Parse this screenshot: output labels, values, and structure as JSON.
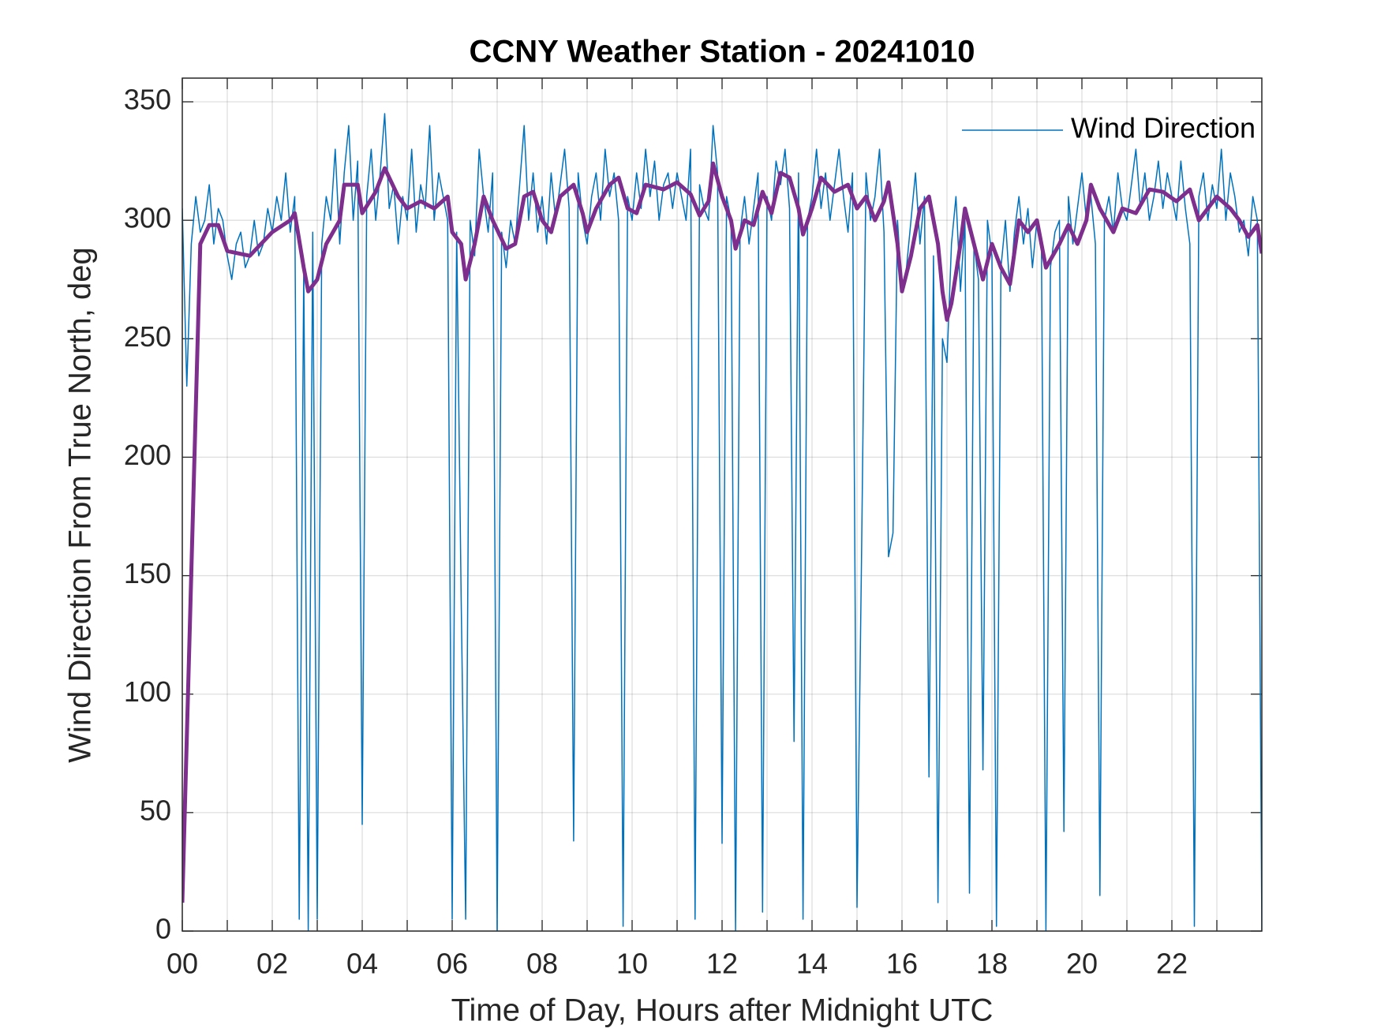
{
  "chart_data": {
    "type": "line",
    "title": "CCNY Weather Station - 20241010",
    "xlabel": "Time of Day, Hours after Midnight UTC",
    "ylabel": "Wind Direction From True North, deg",
    "xlim": [
      0,
      24
    ],
    "ylim": [
      0,
      360
    ],
    "xticks": [
      {
        "value": 0,
        "label": "00"
      },
      {
        "value": 2,
        "label": "02"
      },
      {
        "value": 4,
        "label": "04"
      },
      {
        "value": 6,
        "label": "06"
      },
      {
        "value": 8,
        "label": "08"
      },
      {
        "value": 10,
        "label": "10"
      },
      {
        "value": 12,
        "label": "12"
      },
      {
        "value": 14,
        "label": "14"
      },
      {
        "value": 16,
        "label": "16"
      },
      {
        "value": 18,
        "label": "18"
      },
      {
        "value": 20,
        "label": "20"
      },
      {
        "value": 22,
        "label": "22"
      }
    ],
    "xminor_ticks": [
      1,
      3,
      5,
      7,
      9,
      11,
      13,
      15,
      17,
      19,
      21,
      23
    ],
    "yticks": [
      0,
      50,
      100,
      150,
      200,
      250,
      300,
      350
    ],
    "grid": true,
    "legend": "northeast",
    "series": [
      {
        "name": "Wind Direction",
        "color": "#0072bd",
        "width": 1.5,
        "x": [
          0,
          0.1,
          0.2,
          0.3,
          0.4,
          0.5,
          0.6,
          0.7,
          0.8,
          0.9,
          1,
          1.1,
          1.2,
          1.3,
          1.4,
          1.5,
          1.6,
          1.7,
          1.8,
          1.9,
          2,
          2.1,
          2.2,
          2.3,
          2.4,
          2.5,
          2.6,
          2.7,
          2.8,
          2.9,
          3,
          3.1,
          3.2,
          3.3,
          3.4,
          3.5,
          3.6,
          3.7,
          3.8,
          3.9,
          4,
          4.1,
          4.2,
          4.3,
          4.4,
          4.5,
          4.6,
          4.7,
          4.8,
          4.9,
          5,
          5.1,
          5.2,
          5.3,
          5.4,
          5.5,
          5.6,
          5.7,
          5.8,
          5.9,
          6,
          6.1,
          6.2,
          6.3,
          6.4,
          6.5,
          6.6,
          6.7,
          6.8,
          6.9,
          7,
          7.1,
          7.2,
          7.3,
          7.4,
          7.5,
          7.6,
          7.7,
          7.8,
          7.9,
          8,
          8.1,
          8.2,
          8.3,
          8.4,
          8.5,
          8.6,
          8.7,
          8.8,
          8.9,
          9,
          9.1,
          9.2,
          9.3,
          9.4,
          9.5,
          9.6,
          9.7,
          9.8,
          9.9,
          10,
          10.1,
          10.2,
          10.3,
          10.4,
          10.5,
          10.6,
          10.7,
          10.8,
          10.9,
          11,
          11.1,
          11.2,
          11.3,
          11.4,
          11.5,
          11.6,
          11.7,
          11.8,
          11.9,
          12,
          12.1,
          12.2,
          12.3,
          12.4,
          12.5,
          12.6,
          12.7,
          12.8,
          12.9,
          13,
          13.1,
          13.2,
          13.3,
          13.4,
          13.5,
          13.6,
          13.7,
          13.8,
          13.9,
          14,
          14.1,
          14.2,
          14.3,
          14.4,
          14.5,
          14.6,
          14.7,
          14.8,
          14.9,
          15,
          15.1,
          15.2,
          15.3,
          15.4,
          15.5,
          15.6,
          15.7,
          15.8,
          15.9,
          16,
          16.1,
          16.2,
          16.3,
          16.4,
          16.5,
          16.6,
          16.7,
          16.8,
          16.9,
          17,
          17.1,
          17.2,
          17.3,
          17.4,
          17.5,
          17.6,
          17.7,
          17.8,
          17.9,
          18,
          18.1,
          18.2,
          18.3,
          18.4,
          18.5,
          18.6,
          18.7,
          18.8,
          18.9,
          19,
          19.1,
          19.2,
          19.3,
          19.4,
          19.5,
          19.6,
          19.7,
          19.8,
          19.9,
          20,
          20.1,
          20.2,
          20.3,
          20.4,
          20.5,
          20.6,
          20.7,
          20.8,
          20.9,
          21,
          21.1,
          21.2,
          21.3,
          21.4,
          21.5,
          21.6,
          21.7,
          21.8,
          21.9,
          22,
          22.1,
          22.2,
          22.3,
          22.4,
          22.5,
          22.6,
          22.7,
          22.8,
          22.9,
          23,
          23.1,
          23.2,
          23.3,
          23.4,
          23.5,
          23.6,
          23.7,
          23.8,
          23.9,
          24
        ],
        "values": [
          305,
          230,
          290,
          310,
          295,
          300,
          315,
          290,
          305,
          300,
          285,
          275,
          290,
          295,
          280,
          285,
          300,
          285,
          290,
          305,
          295,
          310,
          300,
          320,
          295,
          310,
          5,
          280,
          0,
          295,
          5,
          290,
          310,
          300,
          330,
          290,
          320,
          340,
          300,
          325,
          45,
          310,
          330,
          300,
          320,
          345,
          305,
          315,
          290,
          310,
          300,
          330,
          295,
          315,
          305,
          340,
          300,
          320,
          310,
          300,
          5,
          295,
          140,
          5,
          300,
          285,
          330,
          310,
          295,
          320,
          0,
          295,
          280,
          300,
          290,
          315,
          340,
          300,
          320,
          295,
          310,
          290,
          320,
          300,
          315,
          330,
          305,
          38,
          320,
          300,
          290,
          310,
          320,
          300,
          330,
          310,
          320,
          300,
          2,
          310,
          300,
          320,
          305,
          330,
          310,
          325,
          300,
          315,
          320,
          305,
          320,
          310,
          300,
          330,
          5,
          315,
          305,
          300,
          340,
          320,
          37,
          310,
          300,
          0,
          295,
          310,
          290,
          305,
          320,
          8,
          310,
          300,
          325,
          315,
          330,
          305,
          80,
          320,
          5,
          300,
          310,
          330,
          305,
          320,
          300,
          315,
          330,
          310,
          295,
          320,
          10,
          157,
          320,
          300,
          310,
          330,
          295,
          158,
          168,
          300,
          270,
          280,
          300,
          320,
          290,
          310,
          65,
          285,
          12,
          250,
          240,
          290,
          310,
          270,
          300,
          16,
          290,
          275,
          68,
          300,
          285,
          2,
          280,
          300,
          270,
          295,
          310,
          290,
          305,
          280,
          300,
          290,
          0,
          280,
          295,
          300,
          42,
          310,
          290,
          305,
          320,
          300,
          310,
          290,
          15,
          300,
          310,
          295,
          320,
          305,
          300,
          315,
          330,
          305,
          320,
          300,
          310,
          325,
          305,
          320,
          310,
          300,
          325,
          305,
          290,
          2,
          310,
          320,
          300,
          315,
          305,
          330,
          300,
          320,
          310,
          295,
          300,
          285,
          310,
          300,
          0
        ]
      },
      {
        "color": "#7e2f8e",
        "width": 5,
        "x": [
          0,
          0.4,
          0.6,
          0.8,
          1,
          1.5,
          2,
          2.4,
          2.5,
          2.7,
          2.8,
          3,
          3.2,
          3.5,
          3.6,
          3.9,
          4,
          4.3,
          4.5,
          4.8,
          5,
          5.3,
          5.6,
          5.9,
          6,
          6.2,
          6.3,
          6.5,
          6.7,
          6.9,
          7.2,
          7.4,
          7.6,
          7.8,
          8,
          8.2,
          8.4,
          8.7,
          8.9,
          9,
          9.2,
          9.5,
          9.7,
          9.9,
          10.1,
          10.3,
          10.7,
          11,
          11.3,
          11.5,
          11.7,
          11.8,
          12,
          12.2,
          12.3,
          12.5,
          12.7,
          12.9,
          13.1,
          13.3,
          13.5,
          13.7,
          13.8,
          14,
          14.2,
          14.5,
          14.8,
          15,
          15.2,
          15.4,
          15.6,
          15.7,
          15.9,
          16,
          16.2,
          16.4,
          16.6,
          16.8,
          16.9,
          17,
          17.1,
          17.3,
          17.4,
          17.6,
          17.8,
          18,
          18.2,
          18.4,
          18.6,
          18.8,
          19,
          19.2,
          19.5,
          19.7,
          19.9,
          20.1,
          20.2,
          20.4,
          20.7,
          20.9,
          21.2,
          21.5,
          21.8,
          22.1,
          22.4,
          22.6,
          22.8,
          23,
          23.3,
          23.5,
          23.7,
          23.9,
          24
        ],
        "values": [
          12,
          290,
          298,
          298,
          287,
          285,
          295,
          300,
          303,
          280,
          270,
          275,
          290,
          300,
          315,
          315,
          303,
          312,
          322,
          310,
          305,
          308,
          305,
          310,
          295,
          290,
          275,
          290,
          310,
          300,
          288,
          290,
          310,
          312,
          300,
          295,
          310,
          315,
          303,
          295,
          305,
          315,
          318,
          305,
          303,
          315,
          313,
          316,
          311,
          302,
          308,
          324,
          310,
          300,
          288,
          300,
          298,
          312,
          303,
          320,
          318,
          305,
          294,
          305,
          318,
          312,
          315,
          305,
          310,
          300,
          308,
          316,
          290,
          270,
          285,
          305,
          310,
          290,
          270,
          258,
          265,
          290,
          305,
          290,
          275,
          290,
          280,
          273,
          300,
          295,
          300,
          280,
          290,
          298,
          290,
          300,
          315,
          305,
          295,
          305,
          303,
          313,
          312,
          308,
          313,
          300,
          305,
          310,
          305,
          300,
          293,
          298,
          286
        ]
      }
    ]
  }
}
